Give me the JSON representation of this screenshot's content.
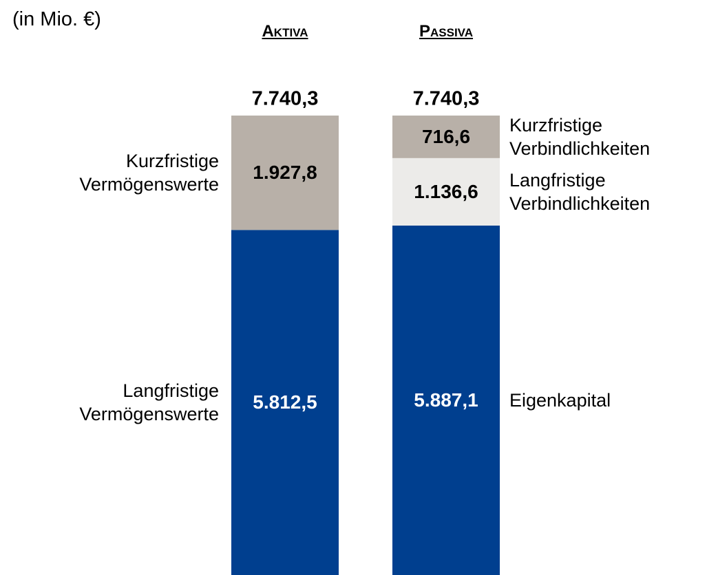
{
  "chart_data": {
    "type": "stacked_bar",
    "unit_label": "(in Mio. €)",
    "categories": [
      "Aktiva",
      "Passiva"
    ],
    "totals": [
      7740.3,
      7740.3
    ],
    "total_labels": [
      "7.740,3",
      "7.740,3"
    ],
    "series": [
      {
        "name": "Langfristige Vermögenswerte",
        "color": "#003f8f",
        "values": [
          5812.5,
          null
        ],
        "value_labels": [
          "5.812,5",
          null
        ]
      },
      {
        "name": "Kurzfristige Vermögenswerte",
        "color": "#b8b0a8",
        "values": [
          1927.8,
          null
        ],
        "value_labels": [
          "1.927,8",
          null
        ]
      },
      {
        "name": "Eigenkapital",
        "color": "#003f8f",
        "values": [
          null,
          5887.1
        ],
        "value_labels": [
          null,
          "5.887,1"
        ]
      },
      {
        "name": "Langfristige Verbindlichkeiten",
        "color": "#ecebe9",
        "values": [
          null,
          1136.6
        ],
        "value_labels": [
          null,
          "1.136,6"
        ]
      },
      {
        "name": "Kurzfristige Verbindlichkeiten",
        "color": "#b8b0a8",
        "values": [
          null,
          716.6
        ],
        "value_labels": [
          null,
          "716,6"
        ]
      }
    ]
  }
}
